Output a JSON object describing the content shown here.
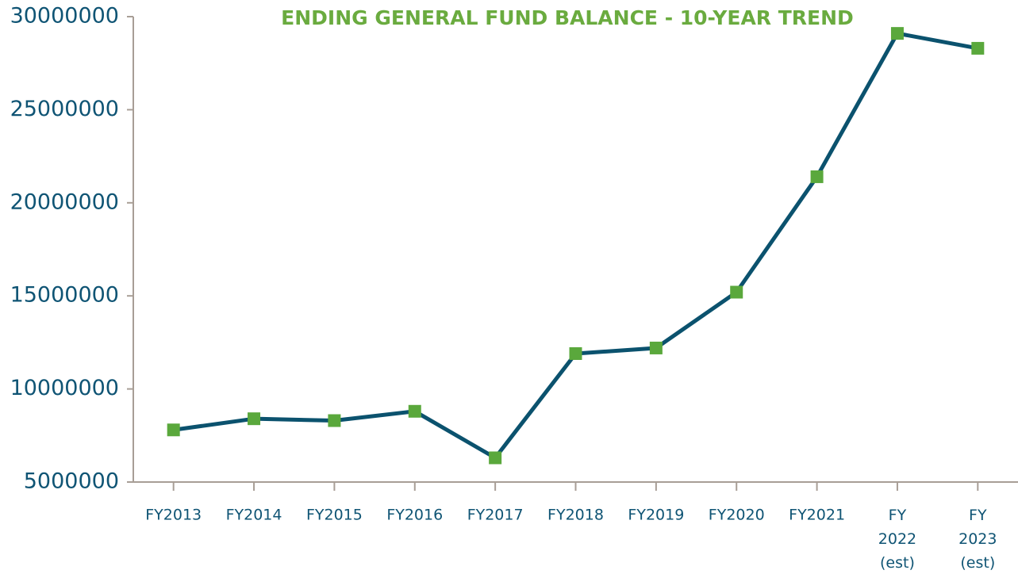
{
  "chart_data": {
    "type": "line",
    "title": "ENDING GENERAL FUND BALANCE - 10-YEAR TREND",
    "categories": [
      "FY2013",
      "FY2014",
      "FY2015",
      "FY2016",
      "FY2017",
      "FY2018",
      "FY2019",
      "FY2020",
      "FY2021",
      "FY\n2022\n(est)",
      "FY\n2023\n(est)"
    ],
    "series": [
      {
        "color": "#0b526e",
        "marker_color": "#5aa83c",
        "values": [
          7800000,
          8400000,
          8300000,
          8800000,
          6300000,
          11900000,
          12200000,
          15200000,
          21400000,
          29100000,
          28300000
        ]
      }
    ],
    "ylim": [
      5000000,
      30000000
    ],
    "yticks": [
      5000000,
      10000000,
      15000000,
      20000000,
      25000000,
      30000000
    ]
  }
}
